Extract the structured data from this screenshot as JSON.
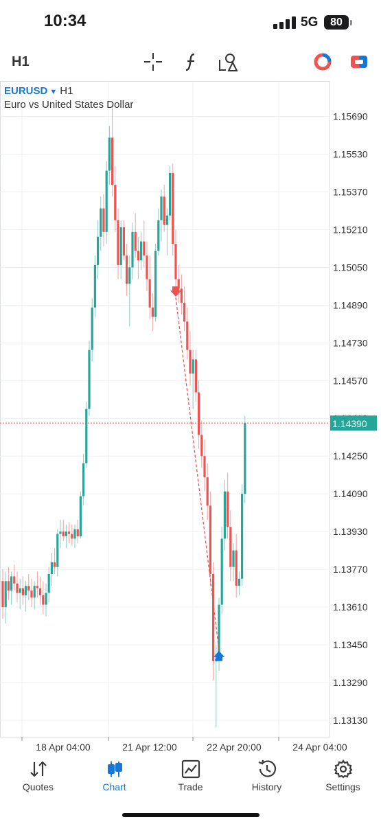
{
  "status": {
    "time": "10:34",
    "network": "5G",
    "battery": "80"
  },
  "toolbar": {
    "timeframe": "H1",
    "tools": [
      "crosshair-icon",
      "indicator-icon",
      "objects-icon"
    ],
    "right_icons": [
      "market-icon",
      "trade-ticket-icon"
    ]
  },
  "symbol": {
    "name": "EURUSD",
    "timeframe": "H1",
    "description": "Euro vs United States Dollar"
  },
  "colors": {
    "up": "#26a69a",
    "down": "#ef5350",
    "accent": "#1677d6",
    "grid": "#eceff1"
  },
  "chart_data": {
    "type": "candlestick",
    "title": "EURUSD H1",
    "y_ticks": [
      "1.15690",
      "1.15530",
      "1.15370",
      "1.15210",
      "1.15050",
      "1.14890",
      "1.14730",
      "1.14570",
      "1.14410",
      "1.14250",
      "1.14090",
      "1.13930",
      "1.13770",
      "1.13610",
      "1.13450",
      "1.13290",
      "1.13130"
    ],
    "ylim": [
      1.1306,
      1.1584
    ],
    "x_ticks": [
      "18 Apr 04:00",
      "21 Apr 12:00",
      "22 Apr 20:00",
      "24 Apr 04:00"
    ],
    "current_price": "1.14390",
    "current_price_value": 1.1439,
    "trade_arrows": [
      {
        "type": "sell",
        "candle_index": 60,
        "price": 1.1494
      },
      {
        "type": "buy",
        "candle_index": 75,
        "price": 1.1341
      }
    ],
    "candles": [
      [
        1.1372,
        1.1377,
        1.1356,
        1.1361
      ],
      [
        1.1361,
        1.1376,
        1.1354,
        1.1372
      ],
      [
        1.1372,
        1.1378,
        1.1364,
        1.1368
      ],
      [
        1.1368,
        1.1376,
        1.1362,
        1.1374
      ],
      [
        1.1374,
        1.1379,
        1.1368,
        1.1371
      ],
      [
        1.1371,
        1.1376,
        1.1363,
        1.1367
      ],
      [
        1.1367,
        1.1373,
        1.136,
        1.1369
      ],
      [
        1.1369,
        1.1374,
        1.1362,
        1.1366
      ],
      [
        1.1366,
        1.1372,
        1.1359,
        1.137
      ],
      [
        1.137,
        1.1375,
        1.1364,
        1.1368
      ],
      [
        1.1368,
        1.1373,
        1.1361,
        1.1365
      ],
      [
        1.1365,
        1.1372,
        1.136,
        1.137
      ],
      [
        1.137,
        1.1376,
        1.1365,
        1.1369
      ],
      [
        1.1369,
        1.1374,
        1.1362,
        1.1366
      ],
      [
        1.1366,
        1.1372,
        1.1358,
        1.1362
      ],
      [
        1.1362,
        1.1371,
        1.1357,
        1.1367
      ],
      [
        1.1367,
        1.1378,
        1.1363,
        1.1375
      ],
      [
        1.1375,
        1.1384,
        1.137,
        1.138
      ],
      [
        1.138,
        1.1386,
        1.1375,
        1.1378
      ],
      [
        1.1378,
        1.1394,
        1.1374,
        1.1392
      ],
      [
        1.1392,
        1.1398,
        1.1386,
        1.1393
      ],
      [
        1.1393,
        1.1398,
        1.1389,
        1.1391
      ],
      [
        1.1391,
        1.1396,
        1.1386,
        1.1393
      ],
      [
        1.1393,
        1.1397,
        1.1388,
        1.1392
      ],
      [
        1.1392,
        1.1396,
        1.1387,
        1.139
      ],
      [
        1.139,
        1.1396,
        1.1386,
        1.1394
      ],
      [
        1.1394,
        1.1398,
        1.1388,
        1.1391
      ],
      [
        1.1391,
        1.141,
        1.139,
        1.1408
      ],
      [
        1.1408,
        1.1426,
        1.1404,
        1.1422
      ],
      [
        1.1422,
        1.1448,
        1.142,
        1.1445
      ],
      [
        1.1445,
        1.1474,
        1.1442,
        1.147
      ],
      [
        1.147,
        1.1492,
        1.1465,
        1.1488
      ],
      [
        1.1488,
        1.151,
        1.1484,
        1.1506
      ],
      [
        1.1506,
        1.1525,
        1.15,
        1.1518
      ],
      [
        1.1518,
        1.1535,
        1.1512,
        1.153
      ],
      [
        1.153,
        1.1536,
        1.1514,
        1.152
      ],
      [
        1.152,
        1.155,
        1.1515,
        1.1546
      ],
      [
        1.1546,
        1.1565,
        1.154,
        1.156
      ],
      [
        1.156,
        1.1574,
        1.1535,
        1.154
      ],
      [
        1.154,
        1.1548,
        1.152,
        1.1525
      ],
      [
        1.1525,
        1.153,
        1.15,
        1.1506
      ],
      [
        1.1506,
        1.1525,
        1.15,
        1.1522
      ],
      [
        1.1522,
        1.1525,
        1.1508,
        1.151
      ],
      [
        1.151,
        1.1515,
        1.1493,
        1.1498
      ],
      [
        1.1498,
        1.151,
        1.148,
        1.1505
      ],
      [
        1.1505,
        1.1524,
        1.15,
        1.152
      ],
      [
        1.152,
        1.1528,
        1.1509,
        1.1512
      ],
      [
        1.1512,
        1.1518,
        1.15,
        1.1508
      ],
      [
        1.1508,
        1.152,
        1.1504,
        1.1516
      ],
      [
        1.1516,
        1.1525,
        1.1505,
        1.151
      ],
      [
        1.151,
        1.1516,
        1.1495,
        1.15
      ],
      [
        1.15,
        1.151,
        1.1483,
        1.1488
      ],
      [
        1.1488,
        1.1494,
        1.1478,
        1.1484
      ],
      [
        1.1484,
        1.1515,
        1.1482,
        1.1512
      ],
      [
        1.1512,
        1.153,
        1.151,
        1.1525
      ],
      [
        1.1525,
        1.1538,
        1.1516,
        1.1535
      ],
      [
        1.1535,
        1.154,
        1.152,
        1.1523
      ],
      [
        1.1523,
        1.153,
        1.151,
        1.1527
      ],
      [
        1.1527,
        1.1548,
        1.1525,
        1.1545
      ],
      [
        1.1545,
        1.1549,
        1.151,
        1.1515
      ],
      [
        1.1515,
        1.1521,
        1.1494,
        1.15
      ],
      [
        1.15,
        1.1506,
        1.149,
        1.1496
      ],
      [
        1.1496,
        1.1502,
        1.1485,
        1.149
      ],
      [
        1.149,
        1.1497,
        1.1478,
        1.1482
      ],
      [
        1.1482,
        1.1488,
        1.1466,
        1.147
      ],
      [
        1.147,
        1.1478,
        1.1455,
        1.146
      ],
      [
        1.146,
        1.147,
        1.1445,
        1.1466
      ],
      [
        1.1466,
        1.147,
        1.1448,
        1.1452
      ],
      [
        1.1452,
        1.1457,
        1.1428,
        1.1434
      ],
      [
        1.1434,
        1.144,
        1.142,
        1.1425
      ],
      [
        1.1425,
        1.1432,
        1.141,
        1.1416
      ],
      [
        1.1416,
        1.1422,
        1.1398,
        1.1404
      ],
      [
        1.1404,
        1.141,
        1.137,
        1.1375
      ],
      [
        1.1375,
        1.138,
        1.133,
        1.1338
      ],
      [
        1.1338,
        1.1345,
        1.131,
        1.1339
      ],
      [
        1.1339,
        1.1365,
        1.1334,
        1.1362
      ],
      [
        1.1362,
        1.1395,
        1.1358,
        1.139
      ],
      [
        1.139,
        1.1415,
        1.1385,
        1.141
      ],
      [
        1.141,
        1.1418,
        1.139,
        1.1395
      ],
      [
        1.1395,
        1.1402,
        1.1372,
        1.1378
      ],
      [
        1.1378,
        1.1388,
        1.1372,
        1.1385
      ],
      [
        1.1385,
        1.1392,
        1.1365,
        1.137
      ],
      [
        1.137,
        1.1376,
        1.1366,
        1.1373
      ],
      [
        1.1373,
        1.1413,
        1.137,
        1.1409
      ],
      [
        1.1409,
        1.1442,
        1.1405,
        1.1439
      ]
    ]
  },
  "tabs": [
    {
      "label": "Quotes",
      "icon": "quotes-icon",
      "active": false
    },
    {
      "label": "Chart",
      "icon": "chart-icon",
      "active": true
    },
    {
      "label": "Trade",
      "icon": "trade-icon",
      "active": false
    },
    {
      "label": "History",
      "icon": "history-icon",
      "active": false
    },
    {
      "label": "Settings",
      "icon": "settings-icon",
      "active": false
    }
  ]
}
